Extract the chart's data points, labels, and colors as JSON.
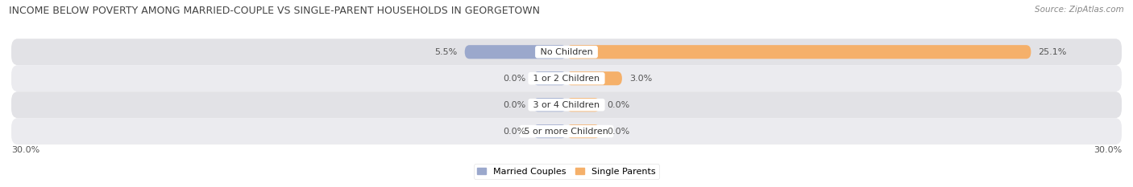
{
  "title": "INCOME BELOW POVERTY AMONG MARRIED-COUPLE VS SINGLE-PARENT HOUSEHOLDS IN GEORGETOWN",
  "source": "Source: ZipAtlas.com",
  "categories": [
    "No Children",
    "1 or 2 Children",
    "3 or 4 Children",
    "5 or more Children"
  ],
  "married_values": [
    5.5,
    0.0,
    0.0,
    0.0
  ],
  "single_values": [
    25.1,
    3.0,
    0.0,
    0.0
  ],
  "married_color": "#9BA8CC",
  "single_color": "#F5B06A",
  "married_label": "Married Couples",
  "single_label": "Single Parents",
  "axis_min": -30.0,
  "axis_max": 30.0,
  "axis_label_left": "30.0%",
  "axis_label_right": "30.0%",
  "bar_height": 0.52,
  "min_bar_width": 1.8,
  "row_bg_color_dark": "#E2E2E6",
  "row_bg_color_light": "#EBEBEF",
  "background_color": "#ffffff",
  "title_fontsize": 9.0,
  "source_fontsize": 7.5,
  "label_fontsize": 8.0,
  "category_fontsize": 8.0,
  "title_color": "#444444",
  "source_color": "#888888",
  "label_color": "#555555"
}
